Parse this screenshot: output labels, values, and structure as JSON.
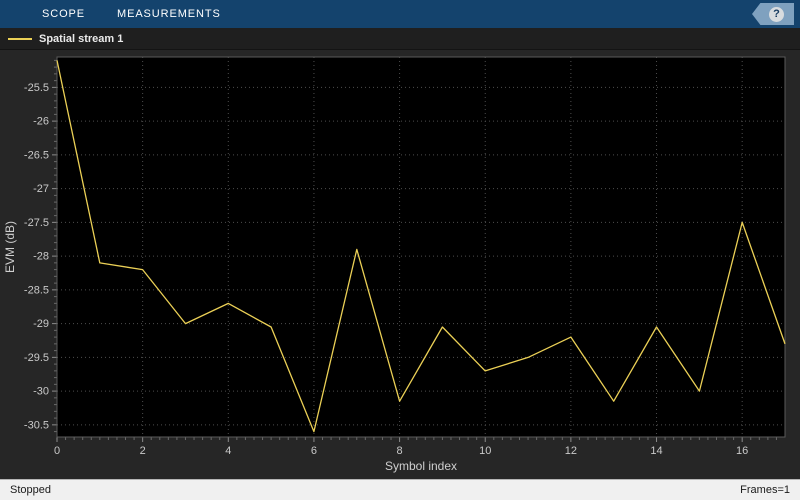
{
  "toolbar": {
    "tabs": [
      {
        "label": "SCOPE"
      },
      {
        "label": "MEASUREMENTS"
      }
    ],
    "help_label": "?"
  },
  "legend": {
    "series_label": "Spatial stream 1"
  },
  "status": {
    "left": "Stopped",
    "right": "Frames=1"
  },
  "colors": {
    "line": "#ebd056",
    "toolbar_bg": "#14436d",
    "figure_bg": "#262626",
    "plot_bg": "#000000",
    "grid": "#4d4d4d",
    "tick": "#8c8c8c",
    "label": "#cfcfcf"
  },
  "chart_data": {
    "type": "line",
    "title": "",
    "xlabel": "Symbol index",
    "ylabel": "EVM (dB)",
    "x": [
      0,
      1,
      2,
      3,
      4,
      5,
      6,
      7,
      8,
      9,
      10,
      11,
      12,
      13,
      14,
      15,
      16,
      17
    ],
    "series": [
      {
        "name": "Spatial stream 1",
        "color": "#ebd056",
        "values": [
          -25.1,
          -28.1,
          -28.2,
          -29.0,
          -28.7,
          -29.05,
          -30.6,
          -27.9,
          -30.15,
          -29.05,
          -29.7,
          -29.5,
          -29.2,
          -30.15,
          -29.05,
          -30.0,
          -27.5,
          -29.3
        ]
      }
    ],
    "xlim": [
      0,
      17
    ],
    "ylim": [
      -30.68,
      -25.05
    ],
    "xticks": [
      0,
      2,
      4,
      6,
      8,
      10,
      12,
      14,
      16
    ],
    "yticks": [
      -30.5,
      -30,
      -29.5,
      -29,
      -28.5,
      -28,
      -27.5,
      -27,
      -26.5,
      -26,
      -25.5
    ],
    "grid": true,
    "grid_style": "dotted",
    "legend_position": "top-bar"
  }
}
